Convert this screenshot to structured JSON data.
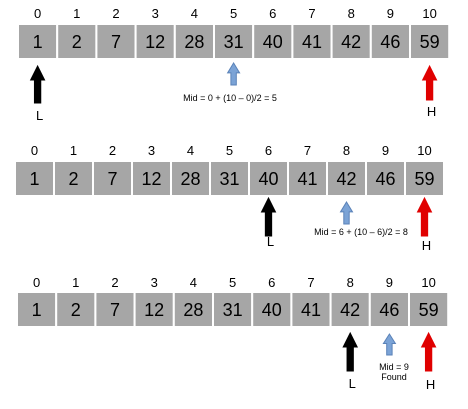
{
  "colors": {
    "cell_fill": "#a6a6a6",
    "low_arrow": "#000000",
    "high_arrow": "#e00000",
    "mid_arrow": "#7ba3d6"
  },
  "arrays": [
    {
      "indices": [
        "0",
        "1",
        "2",
        "3",
        "4",
        "5",
        "6",
        "7",
        "8",
        "9",
        "10"
      ],
      "values": [
        "1",
        "2",
        "7",
        "12",
        "28",
        "31",
        "40",
        "41",
        "42",
        "46",
        "59"
      ],
      "low_index": 0,
      "mid_index": 5,
      "high_index": 10,
      "low_label": "L",
      "high_label": "H",
      "mid_note": [
        "Mid = 0 + (10 – 0)/2 = 5"
      ]
    },
    {
      "indices": [
        "0",
        "1",
        "2",
        "3",
        "4",
        "5",
        "6",
        "7",
        "8",
        "9",
        "10"
      ],
      "values": [
        "1",
        "2",
        "7",
        "12",
        "28",
        "31",
        "40",
        "41",
        "42",
        "46",
        "59"
      ],
      "low_index": 6,
      "mid_index": 8,
      "high_index": 10,
      "low_label": "L",
      "high_label": "H",
      "mid_note": [
        "Mid = 6 + (10 – 6)/2 = 8"
      ]
    },
    {
      "indices": [
        "0",
        "1",
        "2",
        "3",
        "4",
        "5",
        "6",
        "7",
        "8",
        "9",
        "10"
      ],
      "values": [
        "1",
        "2",
        "7",
        "12",
        "28",
        "31",
        "40",
        "41",
        "42",
        "46",
        "59"
      ],
      "low_index": 8,
      "mid_index": 9,
      "high_index": 10,
      "low_label": "L",
      "high_label": "H",
      "mid_note": [
        "Mid = 9",
        "Found"
      ]
    }
  ]
}
